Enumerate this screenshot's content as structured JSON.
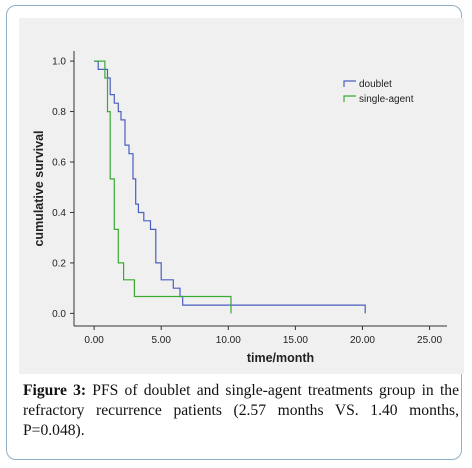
{
  "chart_data": {
    "type": "line",
    "xlabel": "time/month",
    "ylabel": "cumulative survival",
    "xlim": [
      -1.5,
      26.3
    ],
    "ylim": [
      -0.05,
      1.04
    ],
    "x_ticks": [
      0,
      5,
      10,
      15,
      20,
      25
    ],
    "x_tick_labels": [
      "0.00",
      "5.00",
      "10.00",
      "15.00",
      "20.00",
      "25.00"
    ],
    "y_ticks": [
      0,
      0.2,
      0.4,
      0.6,
      0.8,
      1.0
    ],
    "y_tick_labels": [
      "0.0",
      "0.2",
      "0.4",
      "0.6",
      "0.8",
      "1.0"
    ],
    "legend_position": "top-right",
    "series": [
      {
        "name": "doublet",
        "color": "#4a5fc1",
        "step_points": [
          [
            0,
            1.0
          ],
          [
            0.3,
            0.967
          ],
          [
            1.0,
            0.933
          ],
          [
            1.2,
            0.867
          ],
          [
            1.5,
            0.833
          ],
          [
            1.8,
            0.8
          ],
          [
            2.0,
            0.767
          ],
          [
            2.3,
            0.667
          ],
          [
            2.6,
            0.633
          ],
          [
            2.9,
            0.533
          ],
          [
            3.1,
            0.433
          ],
          [
            3.3,
            0.4
          ],
          [
            3.7,
            0.367
          ],
          [
            4.2,
            0.333
          ],
          [
            4.6,
            0.2
          ],
          [
            5.0,
            0.133
          ],
          [
            5.9,
            0.1
          ],
          [
            6.4,
            0.067
          ],
          [
            6.6,
            0.033
          ],
          [
            20.2,
            0.0
          ]
        ]
      },
      {
        "name": "single-agent",
        "color": "#3aaa35",
        "step_points": [
          [
            0,
            1.0
          ],
          [
            0.8,
            0.933
          ],
          [
            1.0,
            0.8
          ],
          [
            1.2,
            0.533
          ],
          [
            1.5,
            0.333
          ],
          [
            1.8,
            0.2
          ],
          [
            2.2,
            0.133
          ],
          [
            3.0,
            0.067
          ],
          [
            10.2,
            0.0
          ]
        ]
      }
    ]
  },
  "caption": {
    "label": "Figure 3:",
    "text": " PFS of doublet and single-agent treatments group in the refractory recurrence patients (2.57 months VS. 1.40 months, P=0.048)."
  }
}
